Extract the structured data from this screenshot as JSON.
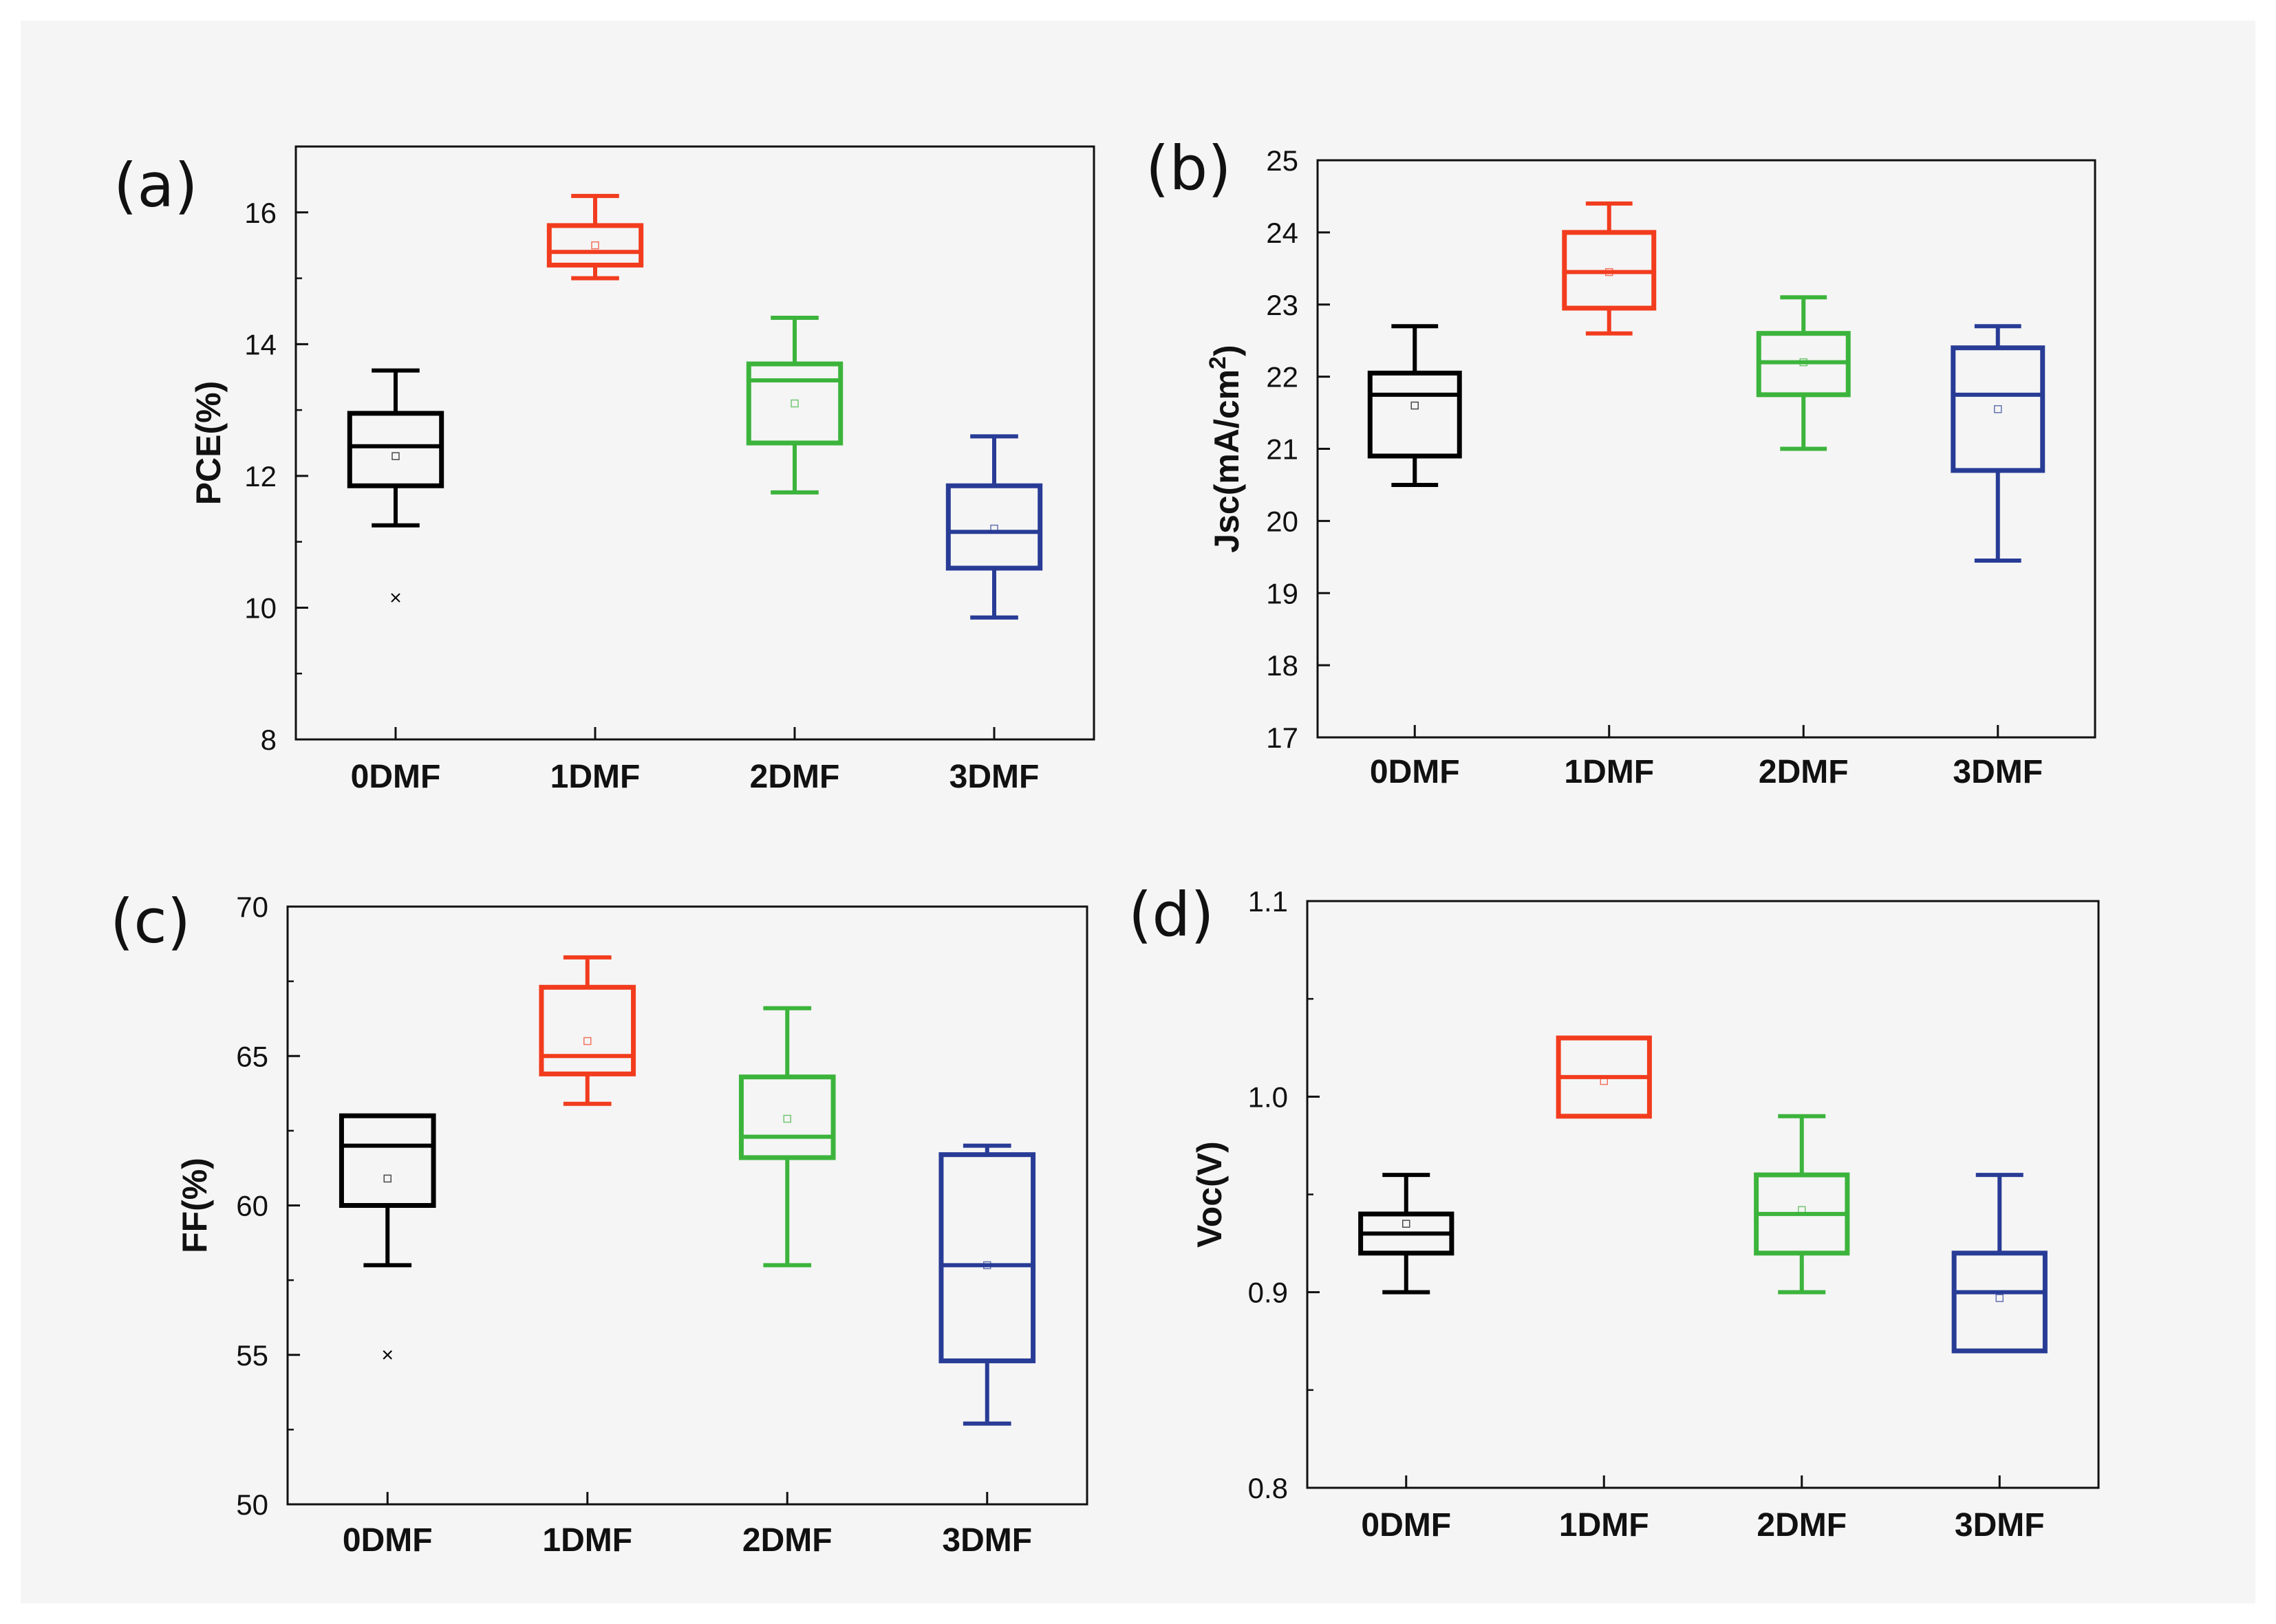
{
  "categories": [
    "0DMF",
    "1DMF",
    "2DMF",
    "3DMF"
  ],
  "colors": {
    "0DMF": "#000000",
    "1DMF": "#f23c1e",
    "2DMF": "#3cb43c",
    "3DMF": "#283c96"
  },
  "chart_data": [
    {
      "type": "box",
      "panel": "(a)",
      "ylabel": "PCE(%)",
      "ylabel_sup": "",
      "ylabel_after": "",
      "ylim": [
        8,
        17
      ],
      "yticks": [
        8,
        10,
        12,
        14,
        16
      ],
      "minor_step": 1,
      "tick_decimals": 0,
      "boxes": [
        {
          "category": "0DMF",
          "min": 11.25,
          "q1": 11.85,
          "median": 12.45,
          "q3": 12.95,
          "max": 13.6,
          "mean": 12.3,
          "outliers": [
            10.15
          ]
        },
        {
          "category": "1DMF",
          "min": 15.0,
          "q1": 15.2,
          "median": 15.4,
          "q3": 15.8,
          "max": 16.25,
          "mean": 15.5,
          "outliers": []
        },
        {
          "category": "2DMF",
          "min": 11.75,
          "q1": 12.5,
          "median": 13.45,
          "q3": 13.7,
          "max": 14.4,
          "mean": 13.1,
          "outliers": []
        },
        {
          "category": "3DMF",
          "min": 9.85,
          "q1": 10.6,
          "median": 11.15,
          "q3": 11.85,
          "max": 12.6,
          "mean": 11.2,
          "outliers": []
        }
      ]
    },
    {
      "type": "box",
      "panel": "(b)",
      "ylabel": "Jsc(mA/cm",
      "ylabel_sup": "2",
      "ylabel_after": ")",
      "ylim": [
        17,
        25
      ],
      "yticks": [
        17,
        18,
        19,
        20,
        21,
        22,
        23,
        24,
        25
      ],
      "minor_step": 0,
      "tick_decimals": 0,
      "boxes": [
        {
          "category": "0DMF",
          "min": 20.5,
          "q1": 20.9,
          "median": 21.75,
          "q3": 22.05,
          "max": 22.7,
          "mean": 21.6,
          "outliers": []
        },
        {
          "category": "1DMF",
          "min": 22.6,
          "q1": 22.95,
          "median": 23.45,
          "q3": 24.0,
          "max": 24.4,
          "mean": 23.45,
          "outliers": []
        },
        {
          "category": "2DMF",
          "min": 21.0,
          "q1": 21.75,
          "median": 22.2,
          "q3": 22.6,
          "max": 23.1,
          "mean": 22.2,
          "outliers": []
        },
        {
          "category": "3DMF",
          "min": 19.45,
          "q1": 20.7,
          "median": 21.75,
          "q3": 22.4,
          "max": 22.7,
          "mean": 21.55,
          "outliers": []
        }
      ]
    },
    {
      "type": "box",
      "panel": "(c)",
      "ylabel": "FF(%)",
      "ylabel_sup": "",
      "ylabel_after": "",
      "ylim": [
        50,
        70
      ],
      "yticks": [
        50,
        55,
        60,
        65,
        70
      ],
      "minor_step": 2.5,
      "tick_decimals": 0,
      "boxes": [
        {
          "category": "0DMF",
          "min": 58.0,
          "q1": 60.0,
          "median": 62.0,
          "q3": 63.0,
          "max": 63.0,
          "mean": 60.9,
          "outliers": [
            55.0
          ]
        },
        {
          "category": "1DMF",
          "min": 63.4,
          "q1": 64.4,
          "median": 65.0,
          "q3": 67.3,
          "max": 68.3,
          "mean": 65.5,
          "outliers": []
        },
        {
          "category": "2DMF",
          "min": 58.0,
          "q1": 61.6,
          "median": 62.3,
          "q3": 64.3,
          "max": 66.6,
          "mean": 62.9,
          "outliers": []
        },
        {
          "category": "3DMF",
          "min": 52.7,
          "q1": 54.8,
          "median": 58.0,
          "q3": 61.7,
          "max": 62.0,
          "mean": 58.0,
          "outliers": []
        }
      ]
    },
    {
      "type": "box",
      "panel": "(d)",
      "ylabel": "Voc(V)",
      "ylabel_sup": "",
      "ylabel_after": "",
      "ylim": [
        0.8,
        1.1
      ],
      "yticks": [
        0.8,
        0.9,
        1.0,
        1.1
      ],
      "minor_step": 0.05,
      "tick_decimals": 1,
      "boxes": [
        {
          "category": "0DMF",
          "min": 0.9,
          "q1": 0.92,
          "median": 0.93,
          "q3": 0.94,
          "max": 0.96,
          "mean": 0.935,
          "outliers": []
        },
        {
          "category": "1DMF",
          "min": 0.99,
          "q1": 0.99,
          "median": 1.01,
          "q3": 1.03,
          "max": 1.03,
          "mean": 1.008,
          "outliers": []
        },
        {
          "category": "2DMF",
          "min": 0.9,
          "q1": 0.92,
          "median": 0.94,
          "q3": 0.96,
          "max": 0.99,
          "mean": 0.942,
          "outliers": []
        },
        {
          "category": "3DMF",
          "min": 0.87,
          "q1": 0.87,
          "median": 0.9,
          "q3": 0.92,
          "max": 0.96,
          "mean": 0.897,
          "outliers": []
        }
      ]
    }
  ]
}
